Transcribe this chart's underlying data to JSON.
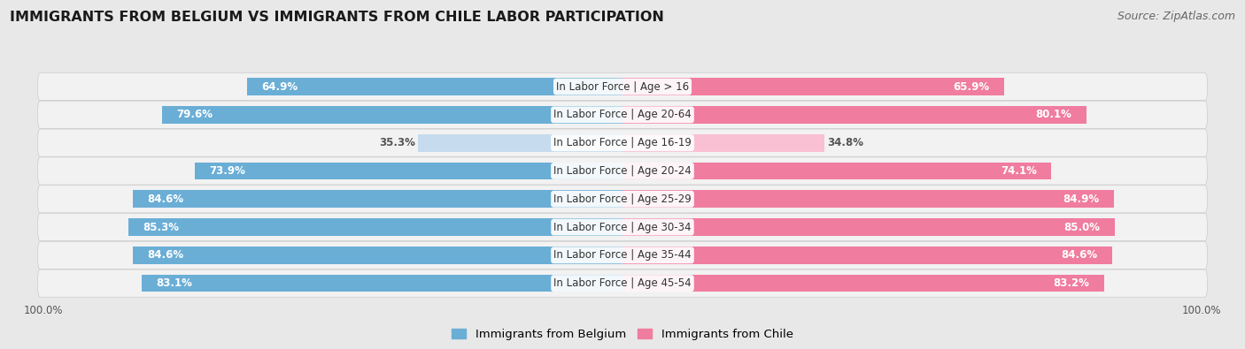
{
  "title": "IMMIGRANTS FROM BELGIUM VS IMMIGRANTS FROM CHILE LABOR PARTICIPATION",
  "source": "Source: ZipAtlas.com",
  "categories": [
    "In Labor Force | Age > 16",
    "In Labor Force | Age 20-64",
    "In Labor Force | Age 16-19",
    "In Labor Force | Age 20-24",
    "In Labor Force | Age 25-29",
    "In Labor Force | Age 30-34",
    "In Labor Force | Age 35-44",
    "In Labor Force | Age 45-54"
  ],
  "belgium_values": [
    64.9,
    79.6,
    35.3,
    73.9,
    84.6,
    85.3,
    84.6,
    83.1
  ],
  "chile_values": [
    65.9,
    80.1,
    34.8,
    74.1,
    84.9,
    85.0,
    84.6,
    83.2
  ],
  "belgium_color": "#6aaed6",
  "chile_color": "#f07ca0",
  "belgium_color_light": "#c6dcee",
  "chile_color_light": "#f9c0d4",
  "belgium_label": "Immigrants from Belgium",
  "chile_label": "Immigrants from Chile",
  "background_color": "#e8e8e8",
  "row_bg_color": "#f2f2f2",
  "max_value": 100.0,
  "title_fontsize": 11.5,
  "source_fontsize": 9,
  "label_fontsize": 8.5,
  "annotation_fontsize": 8.5,
  "tick_fontsize": 8.5
}
